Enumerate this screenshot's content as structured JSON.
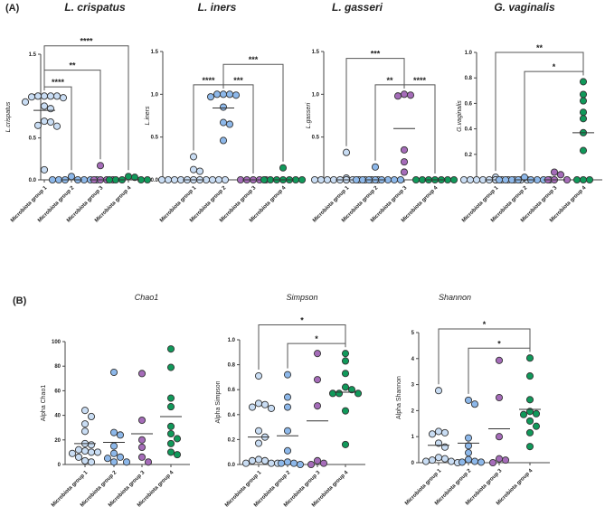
{
  "panel_labels": {
    "a": "(A)",
    "b": "(B)"
  },
  "group_colors": [
    "#c9ddf4",
    "#8db8ea",
    "#a56cb9",
    "#10995a"
  ],
  "outline_color": "#333333",
  "chart_data": [
    {
      "type": "scatter",
      "title": "L. crispatus",
      "ylabel": "L.crispatus",
      "italic_ylabel": true,
      "categories": [
        "Microbiota group 1",
        "Microbiota group 2",
        "Microbiota group 3",
        "Microbiota group 4"
      ],
      "ylim": [
        0,
        1.5
      ],
      "yticks": [
        "0.0",
        "0.5",
        "1.0",
        "1.5"
      ],
      "ytick_values": [
        0,
        0.5,
        1.0,
        1.5
      ],
      "values": [
        [
          1.0,
          1.0,
          1.0,
          1.0,
          0.99,
          0.98,
          0.93,
          0.88,
          0.85,
          0.7,
          0.69,
          0.65,
          0.64,
          0.12
        ],
        [
          0.04,
          0,
          0,
          0,
          0,
          0,
          0,
          0
        ],
        [
          0.17,
          0,
          0,
          0,
          0
        ],
        [
          0.04,
          0.03,
          0,
          0,
          0,
          0,
          0
        ]
      ],
      "medians": [
        0.83,
        0,
        0,
        0
      ],
      "significance": [
        {
          "from": 1,
          "to": 4,
          "label": "****",
          "y": 1.6
        },
        {
          "from": 1,
          "to": 3,
          "label": "**",
          "y": 1.31
        },
        {
          "from": 1,
          "to": 2,
          "label": "****",
          "y": 1.11
        }
      ]
    },
    {
      "type": "scatter",
      "title": "L. iners",
      "ylabel": "L.iners",
      "italic_ylabel": true,
      "categories": [
        "Microbiota group 1",
        "Microbiota group 2",
        "Microbiota group 3",
        "Microbiota group 4"
      ],
      "ylim": [
        0,
        1.5
      ],
      "yticks": [
        "0.0",
        "0.5",
        "1.0",
        "1.5"
      ],
      "ytick_values": [
        0,
        0.5,
        1.0,
        1.5
      ],
      "values": [
        [
          0.27,
          0.12,
          0.1,
          0,
          0,
          0,
          0,
          0,
          0,
          0,
          0,
          0,
          0,
          0
        ],
        [
          1.0,
          1.0,
          1.0,
          0.99,
          0.97,
          0.85,
          0.67,
          0.65,
          0.46
        ],
        [
          0,
          0,
          0,
          0,
          0
        ],
        [
          0.14,
          0,
          0,
          0,
          0,
          0,
          0,
          0
        ]
      ],
      "medians": [
        0,
        0.84,
        0,
        0
      ],
      "significance": [
        {
          "from": 2,
          "to": 4,
          "label": "***",
          "y": 1.35
        },
        {
          "from": 1,
          "to": 2,
          "label": "****",
          "y": 1.11
        },
        {
          "from": 2,
          "to": 3,
          "label": "***",
          "y": 1.11
        }
      ]
    },
    {
      "type": "scatter",
      "title": "L. gasseri",
      "ylabel": "L.gasseri",
      "italic_ylabel": true,
      "categories": [
        "Microbiota group 1",
        "Microbiota group 2",
        "Microbiota group 3",
        "Microbiota group 4"
      ],
      "ylim": [
        0,
        1.5
      ],
      "yticks": [
        "0.0",
        "0.5",
        "1.0",
        "1.5"
      ],
      "ytick_values": [
        0,
        0.5,
        1.0,
        1.5
      ],
      "values": [
        [
          0.32,
          0.02,
          0,
          0,
          0,
          0,
          0,
          0,
          0,
          0,
          0,
          0,
          0,
          0
        ],
        [
          0.15,
          0,
          0,
          0,
          0,
          0,
          0,
          0,
          0
        ],
        [
          1.0,
          0.99,
          0.98,
          0.35,
          0.21,
          0.09
        ],
        [
          0,
          0,
          0,
          0,
          0,
          0,
          0
        ]
      ],
      "medians": [
        0,
        0,
        0.6,
        0
      ],
      "significance": [
        {
          "from": 1,
          "to": 3,
          "label": "***",
          "y": 1.42
        },
        {
          "from": 2,
          "to": 3,
          "label": "**",
          "y": 1.11
        },
        {
          "from": 3,
          "to": 4,
          "label": "****",
          "y": 1.11
        }
      ]
    },
    {
      "type": "scatter",
      "title": "G. vaginalis",
      "ylabel": "G.vaginalis",
      "italic_ylabel": true,
      "categories": [
        "Microbiota group 1",
        "Microbiota group 2",
        "Microbiota group 3",
        "Microbiota group 4"
      ],
      "ylim": [
        0,
        1.0
      ],
      "yticks": [
        "0.0",
        "0.2",
        "0.4",
        "0.6",
        "0.8",
        "1.0"
      ],
      "ytick_values": [
        0,
        0.2,
        0.4,
        0.6,
        0.8,
        1.0
      ],
      "values": [
        [
          0.02,
          0,
          0,
          0,
          0,
          0,
          0,
          0,
          0,
          0,
          0,
          0,
          0,
          0
        ],
        [
          0.02,
          0,
          0,
          0,
          0,
          0,
          0,
          0,
          0
        ],
        [
          0.04,
          0.06,
          0,
          0,
          0
        ],
        [
          0.77,
          0.67,
          0.62,
          0.53,
          0.48,
          0.37,
          0.23,
          0,
          0,
          0
        ]
      ],
      "medians": [
        0,
        0,
        0,
        0.37
      ],
      "significance": [
        {
          "from": 1,
          "to": 4,
          "label": "**",
          "y": 1.0
        },
        {
          "from": 2,
          "to": 4,
          "label": "*",
          "y": 0.85
        }
      ]
    },
    {
      "type": "scatter",
      "title": "Chao1",
      "ylabel": "Alpha Chao1",
      "italic_ylabel": false,
      "categories": [
        "Microbiota group 1",
        "Microbiota group 2",
        "Microbiota group 3",
        "Microbiota group 4"
      ],
      "ylim": [
        0,
        100
      ],
      "yticks": [
        "0",
        "20",
        "40",
        "60",
        "80",
        "100"
      ],
      "ytick_values": [
        0,
        20,
        40,
        60,
        80,
        100
      ],
      "values": [
        [
          44,
          39,
          33,
          27,
          17,
          16,
          12,
          11,
          10,
          10,
          9,
          6,
          3,
          2
        ],
        [
          75,
          26,
          24,
          15,
          9,
          6,
          5,
          2,
          2
        ],
        [
          74,
          36,
          20,
          14,
          6,
          2
        ],
        [
          94,
          79,
          54,
          47,
          31,
          25,
          21,
          17,
          10,
          8
        ]
      ],
      "medians": [
        17,
        18,
        25,
        39
      ],
      "significance": []
    },
    {
      "type": "scatter",
      "title": "Simpson",
      "ylabel": "Alpha Simpson",
      "italic_ylabel": false,
      "categories": [
        "Microbiota group 1",
        "Microbiota group 2",
        "Microbiota group 3",
        "Microbiota group 4"
      ],
      "ylim": [
        0,
        1.0
      ],
      "yticks": [
        "0.0",
        "0.2",
        "0.4",
        "0.6",
        "0.8",
        "1.0"
      ],
      "ytick_values": [
        0,
        0.2,
        0.4,
        0.6,
        0.8,
        1.0
      ],
      "values": [
        [
          0.71,
          0.49,
          0.48,
          0.46,
          0.45,
          0.27,
          0.22,
          0.17,
          0.04,
          0.03,
          0.03,
          0.01,
          0.01,
          0.01
        ],
        [
          0.72,
          0.54,
          0.46,
          0.27,
          0.11,
          0.02,
          0.01,
          0.01,
          0
        ],
        [
          0.89,
          0.68,
          0.47,
          0.03,
          0.01,
          0
        ],
        [
          0.89,
          0.83,
          0.73,
          0.62,
          0.6,
          0.57,
          0.57,
          0.57,
          0.43,
          0.16
        ]
      ],
      "medians": [
        0.22,
        0.23,
        0.35,
        0.58
      ],
      "significance": [
        {
          "from": 1,
          "to": 4,
          "label": "*",
          "y": 1.12
        },
        {
          "from": 2,
          "to": 4,
          "label": "*",
          "y": 0.97
        }
      ]
    },
    {
      "type": "scatter",
      "title": "Shannon",
      "ylabel": "Alpha Shannon",
      "italic_ylabel": false,
      "categories": [
        "Microbiota group 1",
        "Microbiota group 2",
        "Microbiota group 3",
        "Microbiota group 4"
      ],
      "ylim": [
        0,
        5
      ],
      "yticks": [
        "0",
        "1",
        "2",
        "3",
        "4",
        "5"
      ],
      "ytick_values": [
        0,
        1,
        2,
        3,
        4,
        5
      ],
      "values": [
        [
          2.77,
          1.2,
          1.15,
          1.1,
          0.75,
          0.6,
          0.2,
          0.15,
          0.1,
          0.05,
          0.05,
          0
        ],
        [
          2.4,
          2.25,
          0.95,
          0.65,
          0.38,
          0.12,
          0.05,
          0.02,
          0.02
        ],
        [
          3.93,
          2.5,
          1.0,
          0.15,
          0.1,
          0
        ],
        [
          4.02,
          3.33,
          2.42,
          1.97,
          1.88,
          1.85,
          1.6,
          1.4,
          1.15,
          0.62
        ]
      ],
      "medians": [
        0.67,
        0.75,
        1.3,
        2.05
      ],
      "significance": [
        {
          "from": 1,
          "to": 4,
          "label": "*",
          "y": 5.14
        },
        {
          "from": 2,
          "to": 4,
          "label": "*",
          "y": 4.4
        }
      ]
    }
  ]
}
